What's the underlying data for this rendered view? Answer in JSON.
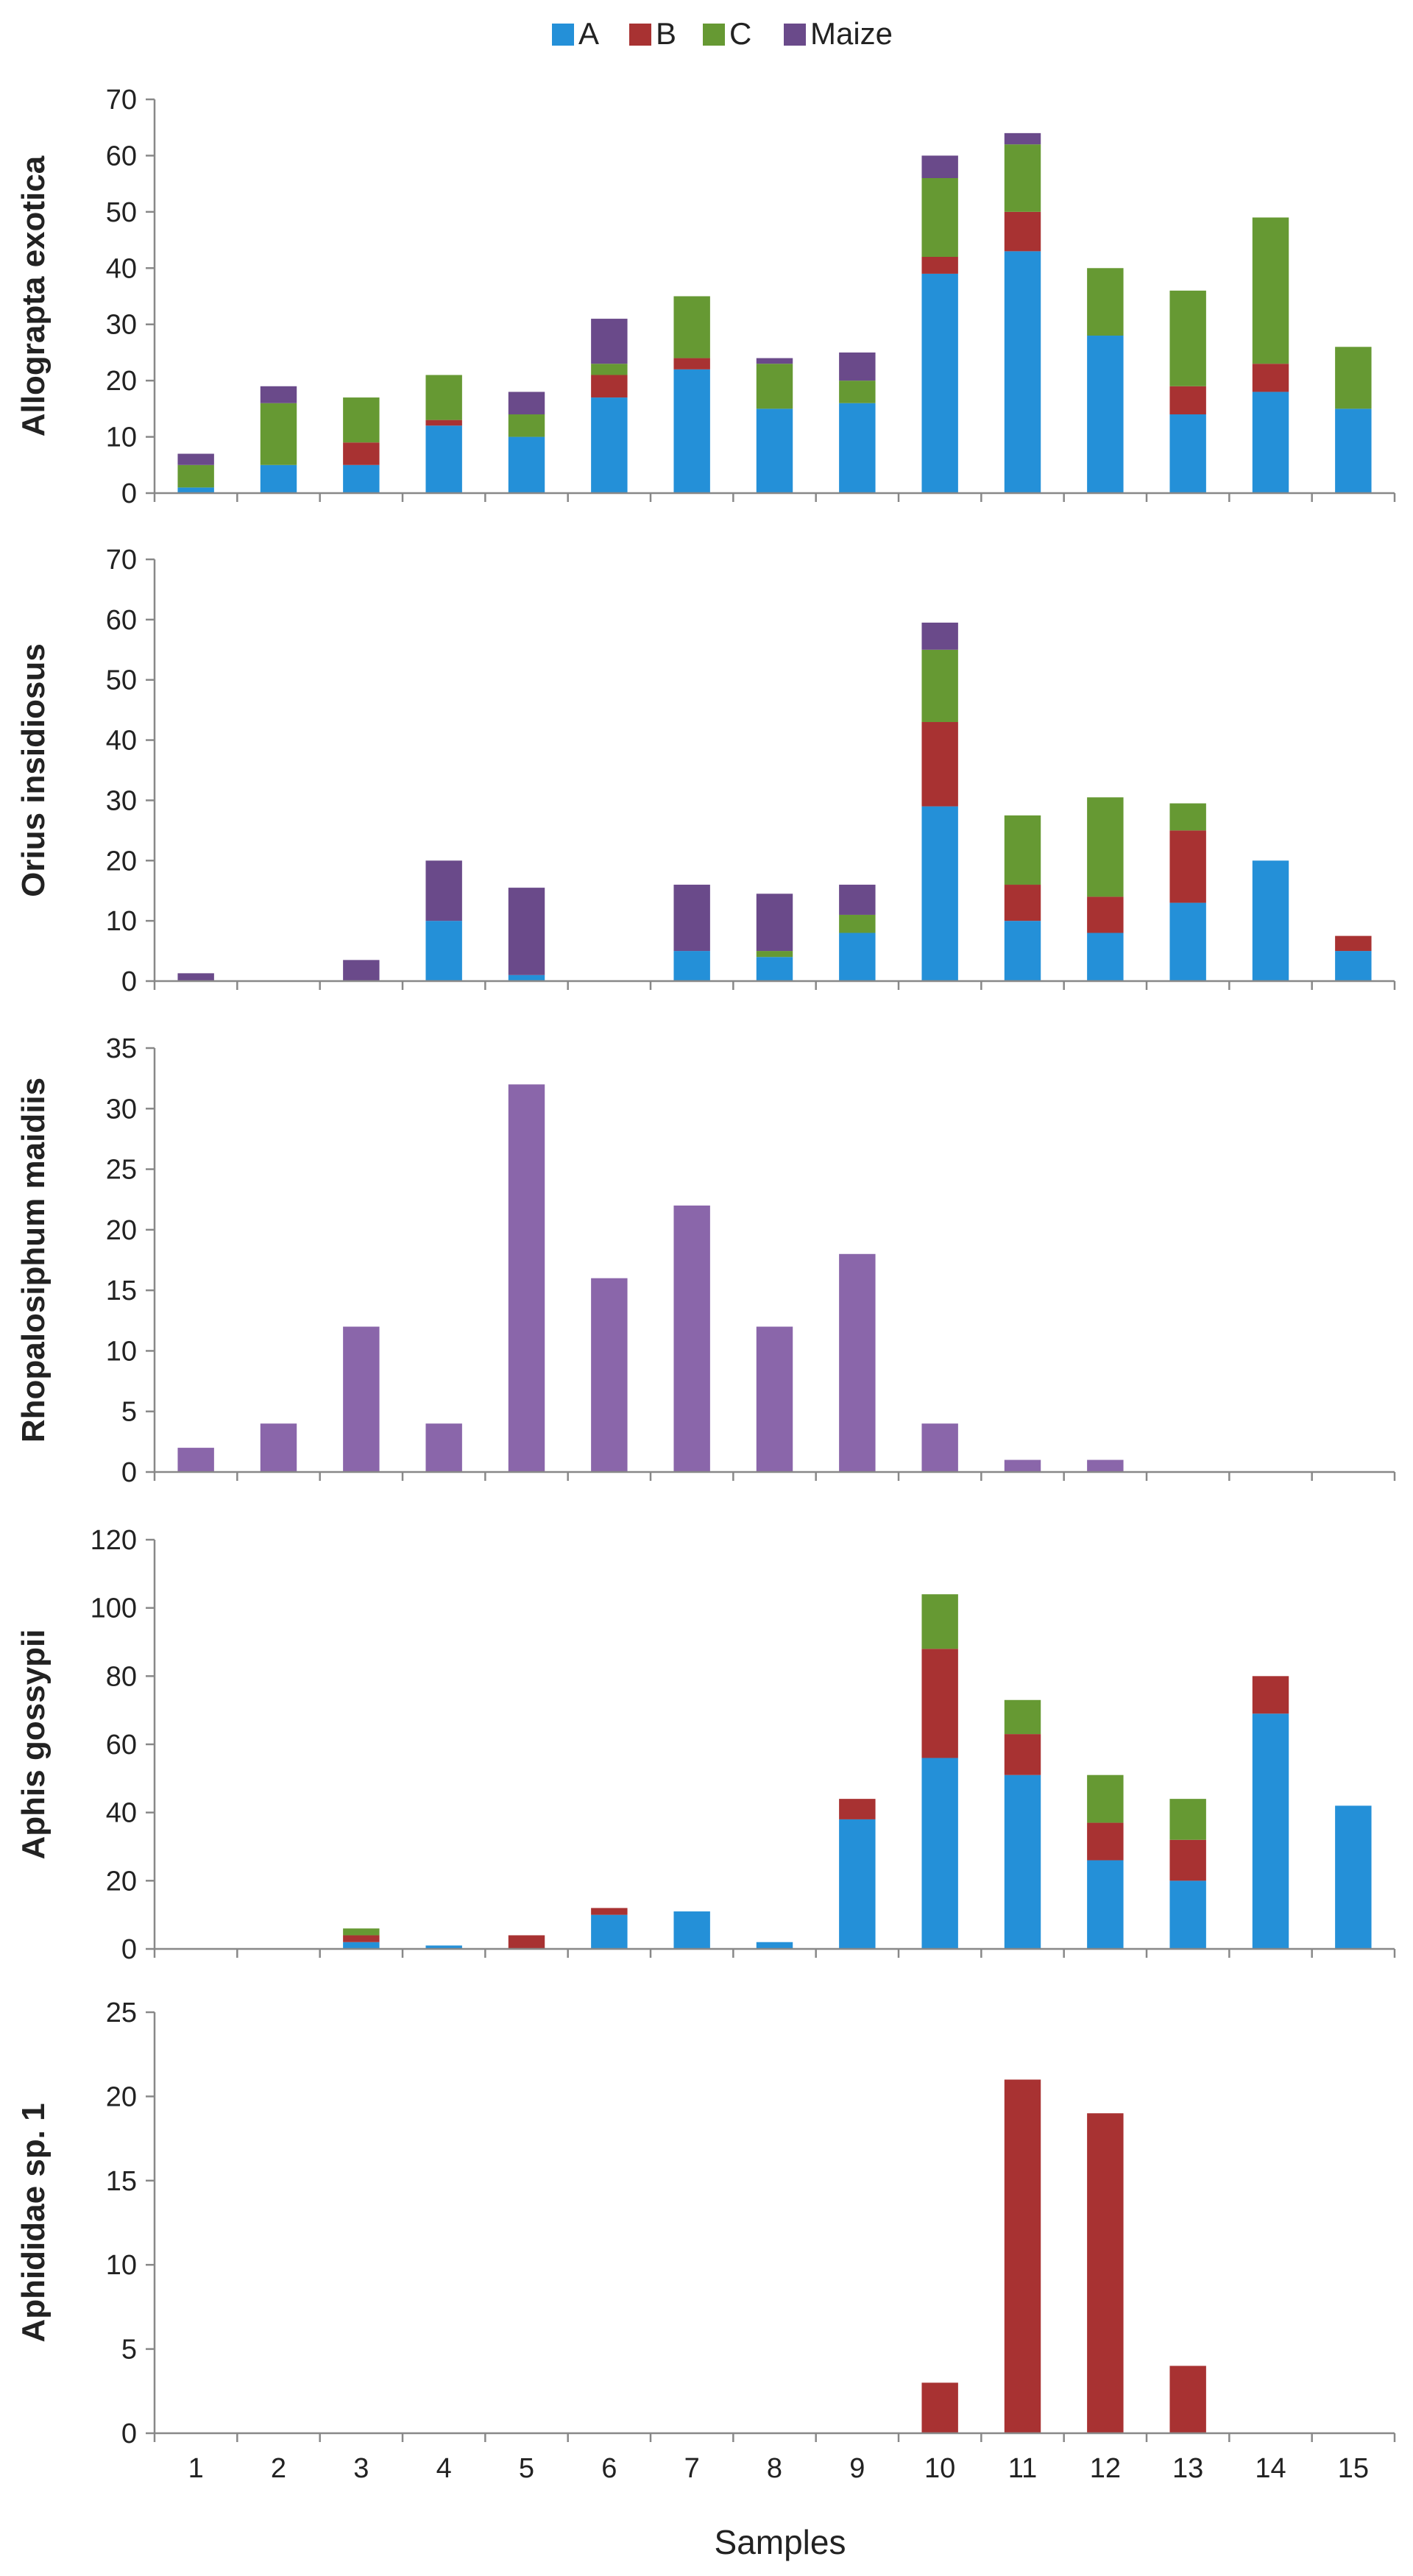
{
  "legend": {
    "placement": "top-center",
    "items": [
      {
        "name": "A",
        "color": "#2490d8"
      },
      {
        "name": "B",
        "color": "#a83232"
      },
      {
        "name": "C",
        "color": "#669933"
      },
      {
        "name": "Maize",
        "color": "#6a4a8a"
      }
    ]
  },
  "xlabel": "Samples",
  "chart_data": [
    {
      "type": "bar",
      "stacked": true,
      "ylabel": "Allograpta exotica",
      "ylim": [
        0,
        70
      ],
      "yticks": [
        0,
        10,
        20,
        30,
        40,
        50,
        60,
        70
      ],
      "categories": [
        "1",
        "2",
        "3",
        "4",
        "5",
        "6",
        "7",
        "8",
        "9",
        "10",
        "11",
        "12",
        "13",
        "14",
        "15"
      ],
      "series": [
        {
          "name": "A",
          "color": "#2490d8",
          "values": [
            1,
            5,
            5,
            12,
            10,
            17,
            22,
            15,
            16,
            39,
            43,
            28,
            14,
            18,
            15
          ]
        },
        {
          "name": "B",
          "color": "#a83232",
          "values": [
            0,
            0,
            4,
            1,
            0,
            4,
            2,
            0,
            0,
            3,
            7,
            0,
            5,
            5,
            0
          ]
        },
        {
          "name": "C",
          "color": "#669933",
          "values": [
            4,
            11,
            8,
            8,
            4,
            2,
            11,
            8,
            4,
            14,
            12,
            12,
            17,
            26,
            11
          ]
        },
        {
          "name": "Maize",
          "color": "#6a4a8a",
          "values": [
            2,
            3,
            0,
            0,
            4,
            8,
            0,
            1,
            5,
            4,
            2,
            0,
            0,
            0,
            0
          ]
        }
      ]
    },
    {
      "type": "bar",
      "stacked": true,
      "ylabel": "Orius insidiosus",
      "ylim": [
        0,
        70
      ],
      "yticks": [
        0,
        10,
        20,
        30,
        40,
        50,
        60,
        70
      ],
      "categories": [
        "1",
        "2",
        "3",
        "4",
        "5",
        "6",
        "7",
        "8",
        "9",
        "10",
        "11",
        "12",
        "13",
        "14",
        "15"
      ],
      "series": [
        {
          "name": "A",
          "color": "#2490d8",
          "values": [
            0,
            0,
            0,
            10,
            1,
            0,
            5,
            4,
            8,
            29,
            10,
            8,
            13,
            20,
            5
          ]
        },
        {
          "name": "B",
          "color": "#a83232",
          "values": [
            0,
            0,
            0,
            0,
            0,
            0,
            0,
            0,
            0,
            14,
            6,
            6,
            12,
            0,
            2.5
          ]
        },
        {
          "name": "C",
          "color": "#669933",
          "values": [
            0,
            0,
            0,
            0,
            0,
            0,
            0,
            1,
            3,
            12,
            11.5,
            16.5,
            4.5,
            0,
            0
          ]
        },
        {
          "name": "Maize",
          "color": "#6a4a8a",
          "values": [
            1.3,
            0,
            3.5,
            10,
            14.5,
            0,
            11,
            9.5,
            5,
            4.5,
            0,
            0,
            0,
            0,
            0
          ]
        }
      ]
    },
    {
      "type": "bar",
      "stacked": true,
      "ylabel": "Rhopalosiphum maidiis",
      "ylim": [
        0,
        35
      ],
      "yticks": [
        0,
        5,
        10,
        15,
        20,
        25,
        30,
        35
      ],
      "categories": [
        "1",
        "2",
        "3",
        "4",
        "5",
        "6",
        "7",
        "8",
        "9",
        "10",
        "11",
        "12",
        "13",
        "14",
        "15"
      ],
      "series": [
        {
          "name": "Maize",
          "color": "#8a66aa",
          "values": [
            2,
            4,
            12,
            4,
            32,
            16,
            22,
            12,
            18,
            4,
            1,
            1,
            0,
            0,
            0
          ]
        }
      ]
    },
    {
      "type": "bar",
      "stacked": true,
      "ylabel": "Aphis gossypii",
      "ylim": [
        0,
        120
      ],
      "yticks": [
        0,
        20,
        40,
        60,
        80,
        100,
        120
      ],
      "categories": [
        "1",
        "2",
        "3",
        "4",
        "5",
        "6",
        "7",
        "8",
        "9",
        "10",
        "11",
        "12",
        "13",
        "14",
        "15"
      ],
      "series": [
        {
          "name": "A",
          "color": "#2490d8",
          "values": [
            0,
            0,
            2,
            1,
            0,
            10,
            11,
            2,
            38,
            56,
            51,
            26,
            20,
            69,
            42
          ]
        },
        {
          "name": "B",
          "color": "#a83232",
          "values": [
            0,
            0,
            2,
            0,
            4,
            2,
            0,
            0,
            6,
            32,
            12,
            11,
            12,
            11,
            0
          ]
        },
        {
          "name": "C",
          "color": "#669933",
          "values": [
            0,
            0,
            2,
            0,
            0,
            0,
            0,
            0,
            0,
            16,
            10,
            14,
            12,
            0,
            0
          ]
        }
      ]
    },
    {
      "type": "bar",
      "stacked": true,
      "ylabel": "Aphididae sp. 1",
      "ylim": [
        0,
        25
      ],
      "yticks": [
        0,
        5,
        10,
        15,
        20,
        25
      ],
      "categories": [
        "1",
        "2",
        "3",
        "4",
        "5",
        "6",
        "7",
        "8",
        "9",
        "10",
        "11",
        "12",
        "13",
        "14",
        "15"
      ],
      "show_xticks": true,
      "series": [
        {
          "name": "B",
          "color": "#a83232",
          "values": [
            0,
            0,
            0,
            0,
            0,
            0,
            0,
            0,
            0,
            3,
            21,
            19,
            4,
            0,
            0
          ]
        }
      ]
    }
  ]
}
